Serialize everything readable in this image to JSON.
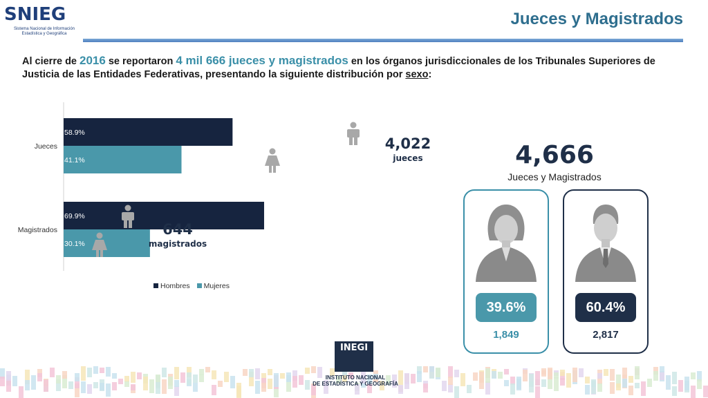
{
  "header": {
    "logo_text": "SNIEG",
    "logo_sub_line1": "Sistema Nacional de Información",
    "logo_sub_line2": "Estadística y Geográfica",
    "title": "Jueces y Magistrados"
  },
  "intro": {
    "part1": "Al cierre de ",
    "year": "2016",
    "part2": " se reportaron ",
    "highlight": "4 mil 666 jueces y magistrados",
    "part3": " en los órganos jurisdiccionales de los Tribunales Superiores de Justicia de las Entidades Federativas, presentando la siguiente distribución por ",
    "underlined": "sexo",
    "part4": ":"
  },
  "chart_data": {
    "type": "bar",
    "orientation": "horizontal",
    "categories": [
      "Jueces",
      "Magistrados"
    ],
    "series": [
      {
        "name": "Hombres",
        "values": [
          58.9,
          69.9
        ],
        "labels": [
          "58.9%",
          "69.9%"
        ],
        "color": "#16243f"
      },
      {
        "name": "Mujeres",
        "values": [
          41.1,
          30.1
        ],
        "labels": [
          "41.1%",
          "30.1%"
        ],
        "color": "#4a98aa"
      }
    ],
    "xlim": [
      0,
      70
    ],
    "legend": "bottom",
    "grid": false
  },
  "totals": {
    "jueces": {
      "value": "4,022",
      "label": "jueces"
    },
    "magistrados": {
      "value": "644",
      "label": "magistrados"
    }
  },
  "summary": {
    "total": "4,666",
    "total_label": "Jueces y Magistrados",
    "women": {
      "pct": "39.6%",
      "count": "1,849"
    },
    "men": {
      "pct": "60.4%",
      "count": "2,817"
    }
  },
  "footer": {
    "logo_text": "INEGI",
    "name_line1": "INSTITUTO NACIONAL",
    "name_line2": "DE ESTADÍSTICA Y GEOGRAFÍA"
  },
  "colors": {
    "men": "#16243f",
    "women": "#4a98aa",
    "person_icon": "#a8a8a8"
  }
}
